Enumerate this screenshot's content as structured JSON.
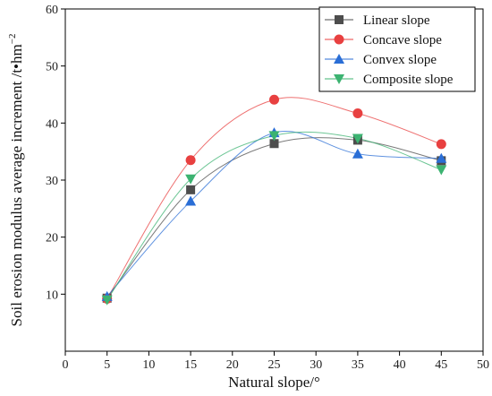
{
  "chart_data": {
    "type": "line",
    "xlabel": "Natural slope/°",
    "ylabel": "Soil erosion modulus average increment /t•hm",
    "ylabel_sup": "−2",
    "xlim": [
      0,
      50
    ],
    "ylim": [
      0,
      60
    ],
    "x_ticks": [
      0,
      5,
      10,
      15,
      20,
      25,
      30,
      35,
      40,
      45,
      50
    ],
    "y_ticks": [
      10,
      20,
      30,
      40,
      50,
      60
    ],
    "grid": false,
    "legend_position": "top-right",
    "x": [
      5,
      15,
      25,
      35,
      45
    ],
    "series": [
      {
        "name": "Linear slope",
        "values": [
          9.3,
          28.3,
          36.4,
          37.0,
          33.4
        ],
        "color": "#4d4d4d",
        "marker": "square"
      },
      {
        "name": "Concave slope",
        "values": [
          9.2,
          33.5,
          44.1,
          41.7,
          36.3
        ],
        "color": "#e84040",
        "marker": "circle"
      },
      {
        "name": "Convex slope",
        "values": [
          9.6,
          26.3,
          38.3,
          34.6,
          33.8
        ],
        "color": "#2a6ed6",
        "marker": "triangle-up"
      },
      {
        "name": "Composite slope",
        "values": [
          9.0,
          30.2,
          37.8,
          37.3,
          31.8
        ],
        "color": "#3cb371",
        "marker": "triangle-down"
      }
    ]
  }
}
